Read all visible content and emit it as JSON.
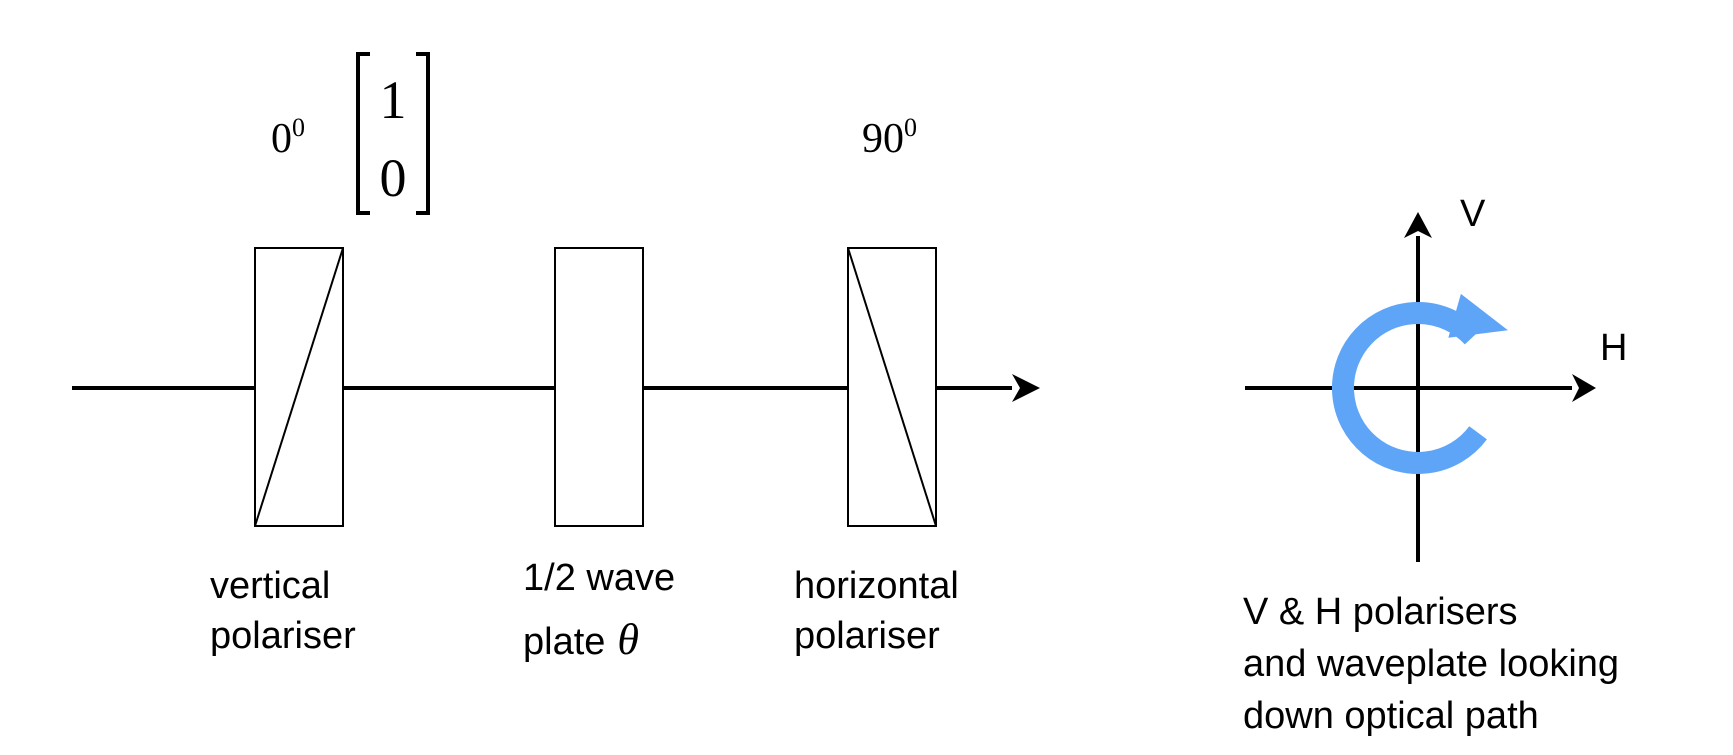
{
  "colors": {
    "line": "#000000",
    "rotation_arrow": "#5ea5f8",
    "background": "#ffffff"
  },
  "elements": {
    "vertical_polariser": {
      "angle_base": "0",
      "angle_sup": "0",
      "label_line1": "vertical",
      "label_line2": "polariser"
    },
    "jones_vector": {
      "top": "1",
      "bottom": "0"
    },
    "half_wave_plate": {
      "label_line1": "1/2 wave",
      "label_line2": "plate",
      "symbol": "θ"
    },
    "horizontal_polariser": {
      "angle_base": "90",
      "angle_sup": "0",
      "label_line1": "horizontal",
      "label_line2": "polariser"
    }
  },
  "axes_view": {
    "v_label": "V",
    "h_label": "H",
    "rotation_icon": "clockwise-rotation-arrow-icon",
    "caption_line1": "V & H polarisers",
    "caption_line2": "and waveplate looking",
    "caption_line3": "down optical path"
  }
}
